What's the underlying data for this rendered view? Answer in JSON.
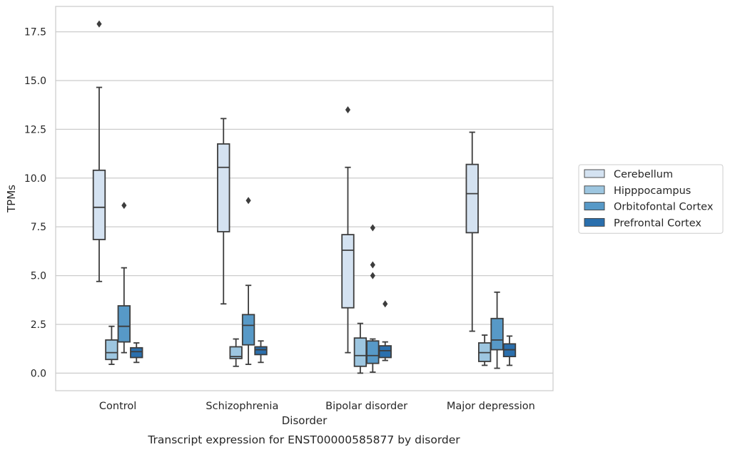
{
  "chart_data": {
    "type": "boxplot",
    "caption": "Transcript expression for ENST00000585877 by disorder",
    "xlabel": "Disorder",
    "ylabel": "TPMs",
    "ylim": [
      -0.9,
      18.8
    ],
    "yticks": [
      0.0,
      2.5,
      5.0,
      7.5,
      10.0,
      12.5,
      15.0,
      17.5
    ],
    "ytick_labels": [
      "0.0",
      "2.5",
      "5.0",
      "7.5",
      "10.0",
      "12.5",
      "15.0",
      "17.5"
    ],
    "grid": "horizontal",
    "legend_position": "right",
    "categories": [
      "Control",
      "Schizophrenia",
      "Bipolar disorder",
      "Major depression"
    ],
    "series": [
      {
        "name": "Cerebellum",
        "color": "#d4e2f1",
        "boxes": [
          {
            "whislo": 4.7,
            "q1": 6.85,
            "med": 8.5,
            "q3": 10.4,
            "whishi": 14.65,
            "fliers": [
              17.9
            ]
          },
          {
            "whislo": 3.55,
            "q1": 7.25,
            "med": 10.55,
            "q3": 11.75,
            "whishi": 13.05,
            "fliers": []
          },
          {
            "whislo": 1.05,
            "q1": 3.35,
            "med": 6.3,
            "q3": 7.1,
            "whishi": 10.55,
            "fliers": [
              13.5
            ]
          },
          {
            "whislo": 2.15,
            "q1": 7.2,
            "med": 9.2,
            "q3": 10.7,
            "whishi": 12.35,
            "fliers": []
          }
        ]
      },
      {
        "name": "Hipppocampus",
        "color": "#9dc6e0",
        "boxes": [
          {
            "whislo": 0.45,
            "q1": 0.7,
            "med": 1.05,
            "q3": 1.7,
            "whishi": 2.4,
            "fliers": []
          },
          {
            "whislo": 0.35,
            "q1": 0.75,
            "med": 0.85,
            "q3": 1.35,
            "whishi": 1.75,
            "fliers": []
          },
          {
            "whislo": 0.0,
            "q1": 0.35,
            "med": 0.9,
            "q3": 1.8,
            "whishi": 2.55,
            "fliers": []
          },
          {
            "whislo": 0.4,
            "q1": 0.6,
            "med": 1.05,
            "q3": 1.55,
            "whishi": 1.95,
            "fliers": []
          }
        ]
      },
      {
        "name": "Orbitofontal Cortex",
        "color": "#5799c7",
        "boxes": [
          {
            "whislo": 1.05,
            "q1": 1.6,
            "med": 2.4,
            "q3": 3.45,
            "whishi": 5.4,
            "fliers": [
              8.6
            ]
          },
          {
            "whislo": 0.45,
            "q1": 1.45,
            "med": 2.45,
            "q3": 3.0,
            "whishi": 4.5,
            "fliers": [
              8.85
            ]
          },
          {
            "whislo": 0.05,
            "q1": 0.5,
            "med": 0.9,
            "q3": 1.65,
            "whishi": 1.75,
            "fliers": [
              7.45,
              5.55,
              5.0
            ]
          },
          {
            "whislo": 0.25,
            "q1": 1.2,
            "med": 1.7,
            "q3": 2.8,
            "whishi": 4.15,
            "fliers": []
          }
        ]
      },
      {
        "name": "Prefrontal Cortex",
        "color": "#2a6fad",
        "boxes": [
          {
            "whislo": 0.55,
            "q1": 0.8,
            "med": 1.1,
            "q3": 1.3,
            "whishi": 1.55,
            "fliers": []
          },
          {
            "whislo": 0.55,
            "q1": 0.95,
            "med": 1.2,
            "q3": 1.35,
            "whishi": 1.65,
            "fliers": []
          },
          {
            "whislo": 0.65,
            "q1": 0.8,
            "med": 1.15,
            "q3": 1.4,
            "whishi": 1.6,
            "fliers": [
              3.55
            ]
          },
          {
            "whislo": 0.4,
            "q1": 0.85,
            "med": 1.2,
            "q3": 1.5,
            "whishi": 1.9,
            "fliers": []
          }
        ]
      }
    ]
  }
}
